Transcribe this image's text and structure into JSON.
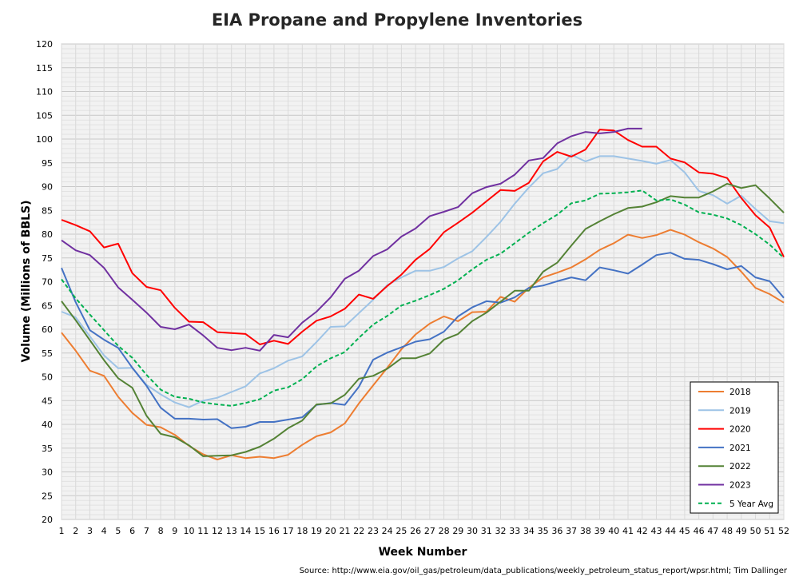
{
  "chart_data": {
    "type": "line",
    "title": "EIA Propane and Propylene Inventories",
    "xlabel": "Week Number",
    "ylabel": "Volume (Millions of BBLS)",
    "source": "Source: http://www.eia.gov/oil_gas/petroleum/data_publications/weekly_petroleum_status_report/wpsr.html; Tim Dallinger",
    "xlim": [
      1,
      52
    ],
    "ylim": [
      20,
      120
    ],
    "ytick_step": 5,
    "grid": true,
    "legend_position": "bottom-right",
    "x": [
      1,
      2,
      3,
      4,
      5,
      6,
      7,
      8,
      9,
      10,
      11,
      12,
      13,
      14,
      15,
      16,
      17,
      18,
      19,
      20,
      21,
      22,
      23,
      24,
      25,
      26,
      27,
      28,
      29,
      30,
      31,
      32,
      33,
      34,
      35,
      36,
      37,
      38,
      39,
      40,
      41,
      42,
      43,
      44,
      45,
      46,
      47,
      48,
      49,
      50,
      51,
      52
    ],
    "series": [
      {
        "name": "2018",
        "color": "#ED7D31",
        "dashed": false,
        "values": [
          59.3,
          55.5,
          51.3,
          50.2,
          45.8,
          42.4,
          39.9,
          39.4,
          37.8,
          35.5,
          33.7,
          32.6,
          33.5,
          32.9,
          33.2,
          32.9,
          33.6,
          35.7,
          37.5,
          38.3,
          40.2,
          44.4,
          48.2,
          51.9,
          55.8,
          58.9,
          61.2,
          62.7,
          61.7,
          63.6,
          63.7,
          66.8,
          65.8,
          68.7,
          70.9,
          71.9,
          73.0,
          74.7,
          76.7,
          78.1,
          79.9,
          79.2,
          79.8,
          80.9,
          79.9,
          78.3,
          77.0,
          75.2,
          72.1,
          68.7,
          67.4,
          65.6
        ]
      },
      {
        "name": "2019",
        "color": "#9DC3E6",
        "dashed": false,
        "values": [
          63.7,
          62.5,
          58.5,
          54.5,
          51.8,
          51.9,
          48.3,
          46.3,
          44.6,
          43.6,
          45.0,
          45.6,
          46.8,
          48.0,
          50.7,
          51.8,
          53.4,
          54.3,
          57.3,
          60.5,
          60.6,
          63.4,
          66.2,
          69.3,
          70.9,
          72.3,
          72.3,
          73.1,
          74.9,
          76.4,
          79.4,
          82.6,
          86.4,
          89.8,
          92.8,
          93.7,
          96.7,
          95.3,
          96.4,
          96.4,
          95.9,
          95.4,
          94.8,
          95.6,
          93.0,
          89.1,
          88.2,
          86.4,
          88.1,
          85.3,
          82.7,
          82.3
        ]
      },
      {
        "name": "2020",
        "color": "#FF0000",
        "dashed": false,
        "values": [
          83.0,
          81.9,
          80.6,
          77.2,
          78.0,
          71.8,
          68.9,
          68.2,
          64.5,
          61.6,
          61.5,
          59.4,
          59.2,
          59.0,
          56.8,
          57.6,
          56.9,
          59.5,
          61.8,
          62.7,
          64.3,
          67.3,
          66.4,
          69.1,
          71.5,
          74.6,
          76.9,
          80.4,
          82.4,
          84.5,
          86.9,
          89.3,
          89.1,
          90.8,
          95.3,
          97.3,
          96.3,
          97.8,
          102.0,
          101.8,
          99.8,
          98.4,
          98.4,
          95.9,
          95.1,
          93.0,
          92.7,
          91.8,
          87.6,
          84.0,
          81.4,
          75.2
        ]
      },
      {
        "name": "2021",
        "color": "#4472C4",
        "dashed": false,
        "values": [
          72.9,
          65.7,
          59.8,
          57.8,
          56.1,
          51.9,
          48.1,
          43.5,
          41.2,
          41.2,
          41.0,
          41.1,
          39.2,
          39.5,
          40.5,
          40.5,
          41.0,
          41.5,
          44.1,
          44.5,
          44.1,
          47.9,
          53.6,
          55.1,
          56.2,
          57.4,
          57.9,
          59.5,
          62.7,
          64.6,
          65.9,
          65.6,
          66.7,
          68.7,
          69.2,
          70.1,
          70.9,
          70.3,
          73.0,
          72.4,
          71.7,
          73.6,
          75.6,
          76.1,
          74.8,
          74.6,
          73.7,
          72.6,
          73.3,
          70.9,
          70.1,
          66.6
        ]
      },
      {
        "name": "2022",
        "color": "#548235",
        "dashed": false,
        "values": [
          65.9,
          61.9,
          57.7,
          53.5,
          49.7,
          47.7,
          41.8,
          38.0,
          37.3,
          35.6,
          33.3,
          33.4,
          33.5,
          34.2,
          35.3,
          37.0,
          39.2,
          40.8,
          44.2,
          44.4,
          46.2,
          49.6,
          50.2,
          51.7,
          53.9,
          53.9,
          54.9,
          57.8,
          59.0,
          61.7,
          63.5,
          65.8,
          68.1,
          68.1,
          72.1,
          74.0,
          77.6,
          81.1,
          82.7,
          84.2,
          85.5,
          85.8,
          86.7,
          88.0,
          87.7,
          87.7,
          89.0,
          90.6,
          89.7,
          90.3,
          87.5,
          84.5
        ]
      },
      {
        "name": "2023",
        "color": "#7030A0",
        "dashed": false,
        "values": [
          78.7,
          76.6,
          75.6,
          72.9,
          68.8,
          66.2,
          63.5,
          60.5,
          60.0,
          61.0,
          58.7,
          56.1,
          55.6,
          56.1,
          55.5,
          58.8,
          58.3,
          61.4,
          63.7,
          66.7,
          70.6,
          72.3,
          75.4,
          76.8,
          79.5,
          81.2,
          83.8,
          84.7,
          85.7,
          88.6,
          89.9,
          90.6,
          92.5,
          95.5,
          96.0,
          99.1,
          100.6,
          101.5,
          101.2,
          101.5,
          102.2,
          102.2,
          null,
          null,
          null,
          null,
          null,
          null,
          null,
          null,
          null,
          null
        ]
      },
      {
        "name": "5 Year Avg",
        "color": "#00B050",
        "dashed": true,
        "values": [
          70.5,
          66.5,
          63.1,
          59.8,
          56.5,
          54.0,
          50.4,
          47.3,
          45.8,
          45.4,
          44.6,
          44.2,
          43.9,
          44.5,
          45.3,
          47.1,
          47.8,
          49.5,
          52.2,
          53.9,
          55.2,
          58.2,
          61.0,
          62.8,
          65.0,
          66.0,
          67.2,
          68.5,
          70.3,
          72.6,
          74.6,
          75.9,
          78.1,
          80.3,
          82.3,
          84.1,
          86.5,
          87.1,
          88.5,
          88.6,
          88.8,
          89.2,
          87.1,
          87.3,
          86.2,
          84.6,
          84.1,
          83.3,
          81.9,
          80.0,
          77.8,
          75.0
        ]
      }
    ]
  }
}
